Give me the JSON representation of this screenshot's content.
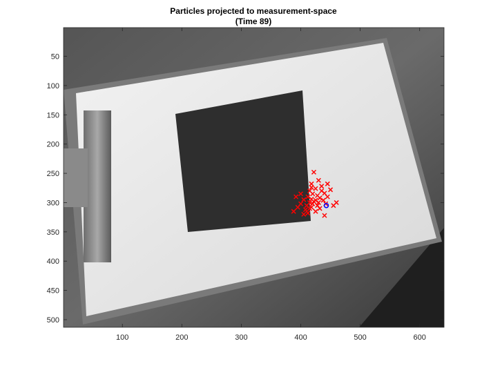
{
  "chart_data": {
    "type": "scatter",
    "title": "Particles projected to measurement-space",
    "subtitle": "(Time 89)",
    "xlabel": "",
    "ylabel": "",
    "xlim": [
      1,
      641
    ],
    "ylim": [
      1,
      513
    ],
    "y_reversed": true,
    "grid": false,
    "x_ticks": [
      100,
      200,
      300,
      400,
      500,
      600
    ],
    "y_ticks": [
      50,
      100,
      150,
      200,
      250,
      300,
      350,
      400,
      450,
      500
    ],
    "background": "grayscale camera frame: white paper on clipboard with dark square",
    "series": [
      {
        "marker": "x",
        "color": "#ff0000",
        "points": [
          [
            422,
            248
          ],
          [
            430,
            262
          ],
          [
            418,
            268
          ],
          [
            435,
            272
          ],
          [
            425,
            276
          ],
          [
            415,
            280
          ],
          [
            440,
            284
          ],
          [
            420,
            285
          ],
          [
            428,
            288
          ],
          [
            445,
            290
          ],
          [
            412,
            290
          ],
          [
            432,
            292
          ],
          [
            418,
            294
          ],
          [
            405,
            295
          ],
          [
            425,
            296
          ],
          [
            438,
            296
          ],
          [
            430,
            300
          ],
          [
            415,
            300
          ],
          [
            400,
            302
          ],
          [
            420,
            302
          ],
          [
            442,
            302
          ],
          [
            410,
            305
          ],
          [
            428,
            305
          ],
          [
            455,
            305
          ],
          [
            395,
            308
          ],
          [
            418,
            308
          ],
          [
            432,
            310
          ],
          [
            408,
            312
          ],
          [
            388,
            315
          ],
          [
            425,
            315
          ],
          [
            412,
            318
          ],
          [
            440,
            322
          ],
          [
            405,
            320
          ],
          [
            392,
            290
          ],
          [
            400,
            285
          ],
          [
            435,
            280
          ],
          [
            450,
            278
          ],
          [
            418,
            274
          ],
          [
            445,
            268
          ],
          [
            460,
            300
          ],
          [
            422,
            298
          ],
          [
            415,
            310
          ]
        ]
      },
      {
        "marker": "o",
        "color": "#0000ff",
        "points": [
          [
            443,
            305
          ]
        ]
      }
    ]
  }
}
